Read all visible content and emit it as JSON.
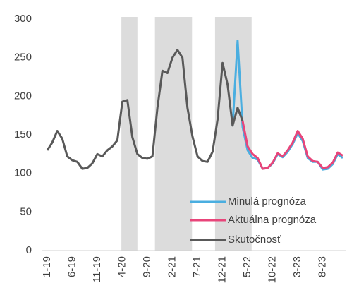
{
  "chart_data": {
    "type": "line",
    "categories": [
      "1-19",
      null,
      null,
      null,
      null,
      "6-19",
      null,
      null,
      null,
      null,
      "11-19",
      null,
      null,
      null,
      null,
      "4-20",
      null,
      null,
      null,
      null,
      "9-20",
      null,
      null,
      null,
      null,
      "2-21",
      null,
      null,
      null,
      null,
      "7-21",
      null,
      null,
      null,
      null,
      "12-21",
      null,
      null,
      null,
      null,
      "5-22",
      null,
      null,
      null,
      null,
      "10-22",
      null,
      null,
      null,
      null,
      "3-23",
      null,
      null,
      null,
      null,
      "8-23",
      null,
      null,
      null,
      null
    ],
    "series": [
      {
        "name": "Minulá prognóza",
        "color": "#4aaee0",
        "values": [
          null,
          null,
          null,
          null,
          null,
          null,
          null,
          null,
          null,
          null,
          null,
          null,
          null,
          null,
          null,
          null,
          null,
          null,
          null,
          null,
          null,
          null,
          null,
          null,
          null,
          null,
          null,
          null,
          null,
          null,
          null,
          null,
          null,
          null,
          null,
          null,
          null,
          162,
          272,
          160,
          130,
          120,
          118,
          106,
          107,
          113,
          125,
          121,
          128,
          138,
          152,
          142,
          120,
          115,
          115,
          105,
          106,
          112,
          125,
          120
        ]
      },
      {
        "name": "Aktuálna prognóza",
        "color": "#e8457a",
        "values": [
          null,
          null,
          null,
          null,
          null,
          null,
          null,
          null,
          null,
          null,
          null,
          null,
          null,
          null,
          null,
          null,
          null,
          null,
          null,
          null,
          null,
          null,
          null,
          null,
          null,
          null,
          null,
          null,
          null,
          null,
          null,
          null,
          null,
          null,
          null,
          null,
          null,
          null,
          null,
          168,
          135,
          125,
          120,
          106,
          107,
          114,
          126,
          122,
          130,
          140,
          155,
          145,
          122,
          116,
          115,
          107,
          108,
          114,
          127,
          123
        ]
      },
      {
        "name": "Skutočnosť",
        "color": "#595959",
        "values": [
          130,
          140,
          155,
          145,
          122,
          117,
          115,
          106,
          107,
          113,
          125,
          122,
          130,
          135,
          143,
          193,
          195,
          147,
          125,
          120,
          119,
          122,
          185,
          233,
          230,
          250,
          260,
          250,
          185,
          148,
          122,
          116,
          115,
          128,
          170,
          243,
          215,
          162,
          185,
          168,
          null,
          null,
          null,
          null,
          null,
          null,
          null,
          null,
          null,
          null,
          null,
          null,
          null,
          null,
          null,
          null,
          null,
          null,
          null,
          null
        ]
      }
    ],
    "shaded_spans": [
      [
        14.8,
        18
      ],
      [
        21.5,
        28.9
      ],
      [
        33.5,
        40.8
      ]
    ],
    "shade_color": "#dcdcdc",
    "ylim": [
      0,
      300
    ],
    "yticks": [
      0,
      50,
      100,
      150,
      200,
      250,
      300
    ],
    "legend": "lower right"
  }
}
